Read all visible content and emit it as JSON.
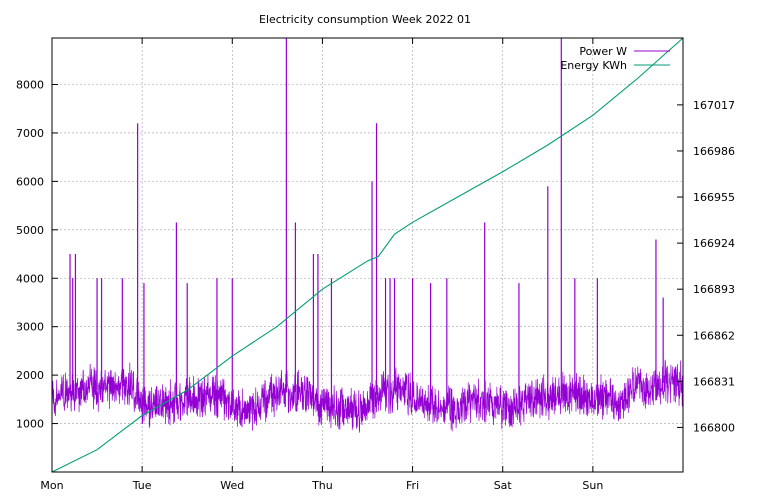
{
  "chart_data": {
    "type": "line",
    "title": "Electricity consumption Week 2022 01",
    "x_ticks": [
      "Mon",
      "Tue",
      "Wed",
      "Thu",
      "Fri",
      "Sat",
      "Sun"
    ],
    "x_range_days": [
      0,
      7.0
    ],
    "y_left": {
      "ylim": [
        0,
        8960
      ],
      "ticks": [
        1000,
        2000,
        3000,
        4000,
        5000,
        6000,
        7000,
        8000
      ]
    },
    "y_right": {
      "ylim": [
        166770,
        167062
      ],
      "ticks": [
        166800,
        166831,
        166862,
        166893,
        166924,
        166955,
        166986,
        167017
      ]
    },
    "grid": true,
    "legend_position": "top-right",
    "series": [
      {
        "name": "Power W",
        "axis": "left",
        "color": "#9400d3",
        "baseline": [
          [
            0.0,
            1550
          ],
          [
            0.1,
            1600
          ],
          [
            0.2,
            1650
          ],
          [
            0.3,
            1680
          ],
          [
            0.4,
            1750
          ],
          [
            0.5,
            1700
          ],
          [
            0.6,
            1720
          ],
          [
            0.7,
            1780
          ],
          [
            0.8,
            1820
          ],
          [
            0.9,
            1700
          ],
          [
            1.0,
            1400
          ],
          [
            1.1,
            1380
          ],
          [
            1.2,
            1400
          ],
          [
            1.3,
            1420
          ],
          [
            1.4,
            1450
          ],
          [
            1.5,
            1480
          ],
          [
            1.6,
            1500
          ],
          [
            1.7,
            1550
          ],
          [
            1.8,
            1600
          ],
          [
            1.9,
            1500
          ],
          [
            2.0,
            1400
          ],
          [
            2.1,
            1250
          ],
          [
            2.2,
            1300
          ],
          [
            2.3,
            1400
          ],
          [
            2.4,
            1550
          ],
          [
            2.5,
            1600
          ],
          [
            2.6,
            1650
          ],
          [
            2.7,
            1650
          ],
          [
            2.8,
            1600
          ],
          [
            2.9,
            1450
          ],
          [
            3.0,
            1400
          ],
          [
            3.1,
            1350
          ],
          [
            3.2,
            1300
          ],
          [
            3.3,
            1250
          ],
          [
            3.4,
            1300
          ],
          [
            3.5,
            1450
          ],
          [
            3.6,
            1600
          ],
          [
            3.7,
            1650
          ],
          [
            3.8,
            1700
          ],
          [
            3.9,
            1650
          ],
          [
            4.0,
            1550
          ],
          [
            4.1,
            1450
          ],
          [
            4.2,
            1400
          ],
          [
            4.3,
            1350
          ],
          [
            4.4,
            1300
          ],
          [
            4.5,
            1300
          ],
          [
            4.6,
            1450
          ],
          [
            4.7,
            1500
          ],
          [
            4.8,
            1450
          ],
          [
            4.9,
            1400
          ],
          [
            5.0,
            1350
          ],
          [
            5.1,
            1300
          ],
          [
            5.2,
            1400
          ],
          [
            5.3,
            1500
          ],
          [
            5.4,
            1550
          ],
          [
            5.5,
            1500
          ],
          [
            5.6,
            1550
          ],
          [
            5.7,
            1600
          ],
          [
            5.8,
            1650
          ],
          [
            5.9,
            1550
          ],
          [
            6.0,
            1500
          ],
          [
            6.1,
            1500
          ],
          [
            6.2,
            1450
          ],
          [
            6.3,
            1400
          ],
          [
            6.4,
            1600
          ],
          [
            6.5,
            1800
          ],
          [
            6.6,
            1700
          ],
          [
            6.7,
            1800
          ],
          [
            6.8,
            1850
          ],
          [
            6.9,
            1850
          ],
          [
            7.0,
            1850
          ]
        ],
        "spikes": [
          [
            0.2,
            4500
          ],
          [
            0.23,
            4000
          ],
          [
            0.26,
            4500
          ],
          [
            0.5,
            4000
          ],
          [
            0.55,
            4000
          ],
          [
            0.78,
            4000
          ],
          [
            0.95,
            7200
          ],
          [
            1.02,
            3900
          ],
          [
            1.38,
            5150
          ],
          [
            1.5,
            3900
          ],
          [
            1.83,
            4000
          ],
          [
            2.0,
            4000
          ],
          [
            2.6,
            8950
          ],
          [
            2.7,
            5150
          ],
          [
            2.9,
            4500
          ],
          [
            2.95,
            4500
          ],
          [
            3.1,
            4000
          ],
          [
            3.55,
            6000
          ],
          [
            3.6,
            7200
          ],
          [
            3.7,
            4000
          ],
          [
            3.75,
            4000
          ],
          [
            3.8,
            4000
          ],
          [
            4.0,
            4000
          ],
          [
            4.2,
            3900
          ],
          [
            4.38,
            4000
          ],
          [
            4.8,
            5150
          ],
          [
            5.18,
            3900
          ],
          [
            5.5,
            5900
          ],
          [
            5.65,
            8950
          ],
          [
            5.8,
            4000
          ],
          [
            6.05,
            4000
          ],
          [
            6.7,
            4800
          ],
          [
            6.78,
            3600
          ]
        ],
        "amplitude": 900
      },
      {
        "name": "Energy KWh",
        "axis": "right",
        "color": "#009e73",
        "values": [
          [
            0.0,
            166770
          ],
          [
            0.5,
            166785
          ],
          [
            1.0,
            166808
          ],
          [
            1.5,
            166825
          ],
          [
            2.0,
            166848
          ],
          [
            2.5,
            166868
          ],
          [
            3.0,
            166893
          ],
          [
            3.5,
            166912
          ],
          [
            3.62,
            166915
          ],
          [
            3.8,
            166930
          ],
          [
            4.0,
            166938
          ],
          [
            4.5,
            166955
          ],
          [
            5.0,
            166972
          ],
          [
            5.5,
            166990
          ],
          [
            6.0,
            167010
          ],
          [
            6.5,
            167035
          ],
          [
            7.0,
            167062
          ]
        ]
      }
    ]
  }
}
